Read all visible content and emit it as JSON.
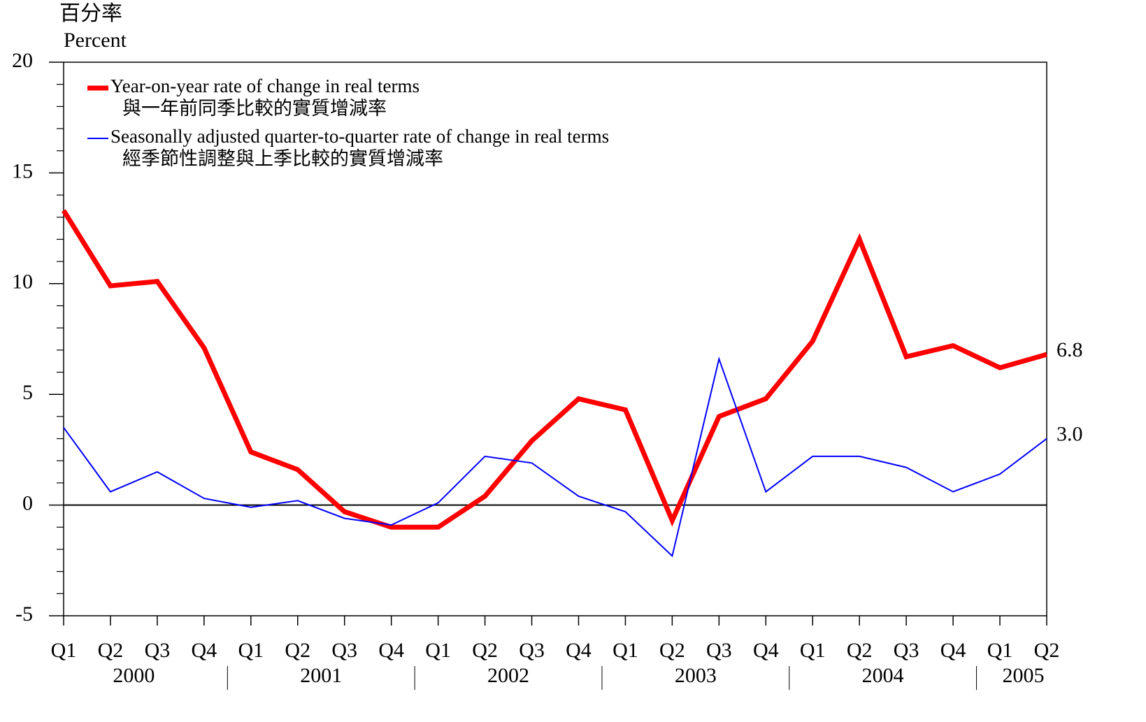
{
  "chart_data": {
    "type": "line",
    "y_title": "百分率",
    "y_title_en": "Percent",
    "categories": [
      "Q1",
      "Q2",
      "Q3",
      "Q4",
      "Q1",
      "Q2",
      "Q3",
      "Q4",
      "Q1",
      "Q2",
      "Q3",
      "Q4",
      "Q1",
      "Q2",
      "Q3",
      "Q4",
      "Q1",
      "Q2",
      "Q3",
      "Q4",
      "Q1",
      "Q2"
    ],
    "groups": [
      "2000",
      "2001",
      "2002",
      "2003",
      "2004",
      "2005"
    ],
    "series": [
      {
        "name": "Year-on-year rate of change in real terms",
        "name_zh": "與一年前同季比較的實質增減率",
        "color": "#ff0000",
        "width": 7,
        "values": [
          13.3,
          9.9,
          10.1,
          7.1,
          2.4,
          1.6,
          -0.3,
          -1.0,
          -1.0,
          0.4,
          2.9,
          4.8,
          4.3,
          -0.7,
          4.0,
          4.8,
          7.4,
          12.0,
          6.7,
          7.2,
          6.2,
          6.8
        ],
        "value_labels": [
          null,
          null,
          null,
          null,
          null,
          null,
          null,
          null,
          null,
          null,
          null,
          null,
          null,
          null,
          null,
          null,
          null,
          null,
          null,
          null,
          null,
          "6.8"
        ]
      },
      {
        "name": "Seasonally adjusted quarter-to-quarter rate of change in real terms",
        "name_zh": "經季節性調整與上季比較的實質增減率",
        "color": "#0000ff",
        "width": 2,
        "values": [
          3.5,
          0.6,
          1.5,
          0.3,
          -0.1,
          0.2,
          -0.6,
          -0.9,
          0.1,
          2.2,
          1.9,
          0.4,
          -0.3,
          -2.3,
          6.6,
          0.6,
          2.2,
          2.2,
          1.7,
          0.6,
          1.4,
          3.0
        ],
        "value_labels": [
          null,
          null,
          null,
          null,
          null,
          null,
          null,
          null,
          null,
          null,
          null,
          null,
          null,
          null,
          null,
          null,
          null,
          null,
          null,
          null,
          null,
          "3.0"
        ]
      }
    ],
    "ylim": [
      -5,
      20
    ],
    "yticks": [
      -5,
      0,
      5,
      10,
      15,
      20
    ],
    "yminorticks": [
      -4,
      -3,
      -2,
      -1,
      1,
      2,
      3,
      4,
      6,
      7,
      8,
      9,
      11,
      12,
      13,
      14,
      16,
      17,
      18,
      19
    ],
    "zero_line": true,
    "legend": "upper left"
  }
}
